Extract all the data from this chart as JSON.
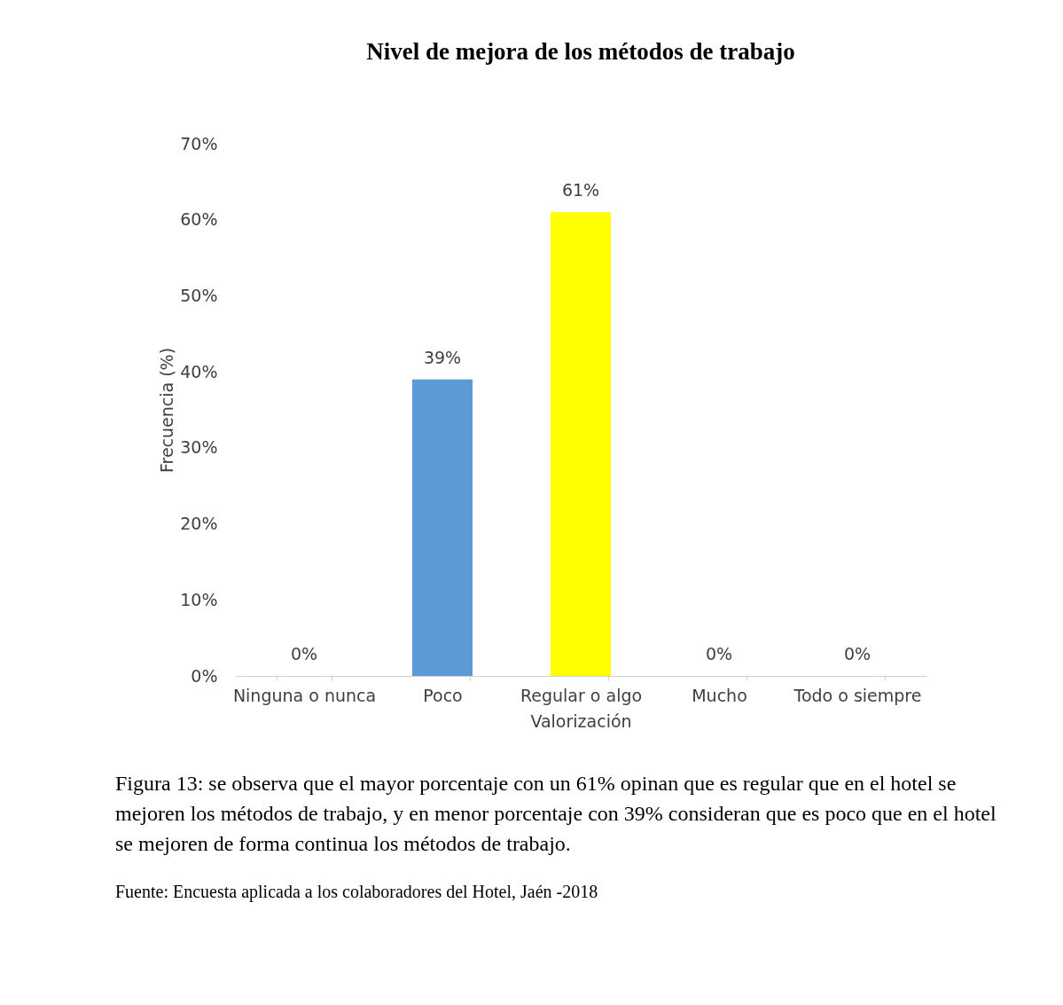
{
  "chart_data": {
    "type": "bar",
    "title": "Nivel de mejora de los métodos de trabajo",
    "xlabel": "Valorización",
    "ylabel": "Frecuencia (%)",
    "categories": [
      "Ninguna o nunca",
      "Poco",
      "Regular o algo",
      "Mucho",
      "Todo o siempre"
    ],
    "values": [
      0,
      39,
      61,
      0,
      0
    ],
    "colors": [
      "#5b9bd5",
      "#5b9bd5",
      "#ffff00",
      "#5b9bd5",
      "#5b9bd5"
    ],
    "value_labels": [
      "0%",
      "39%",
      "61%",
      "0%",
      "0%"
    ],
    "ylim": [
      0,
      70
    ],
    "yticks": [
      {
        "value": 0,
        "label": "0%"
      },
      {
        "value": 10,
        "label": "10%"
      },
      {
        "value": 20,
        "label": "20%"
      },
      {
        "value": 30,
        "label": "30%"
      },
      {
        "value": 40,
        "label": "40%"
      },
      {
        "value": 50,
        "label": "50%"
      },
      {
        "value": 60,
        "label": "60%"
      },
      {
        "value": 70,
        "label": "70%"
      }
    ],
    "grid": false,
    "annotations": [
      "Figura 13: se observa que el mayor porcentaje con un 61% opinan que es regular que en el hotel se mejoren los métodos de trabajo, y en menor porcentaje con 39% consideran que es poco que en el hotel se mejoren de forma continua los métodos de trabajo.",
      "Fuente: Encuesta aplicada a los colaboradores del Hotel, Jaén -2018"
    ]
  }
}
